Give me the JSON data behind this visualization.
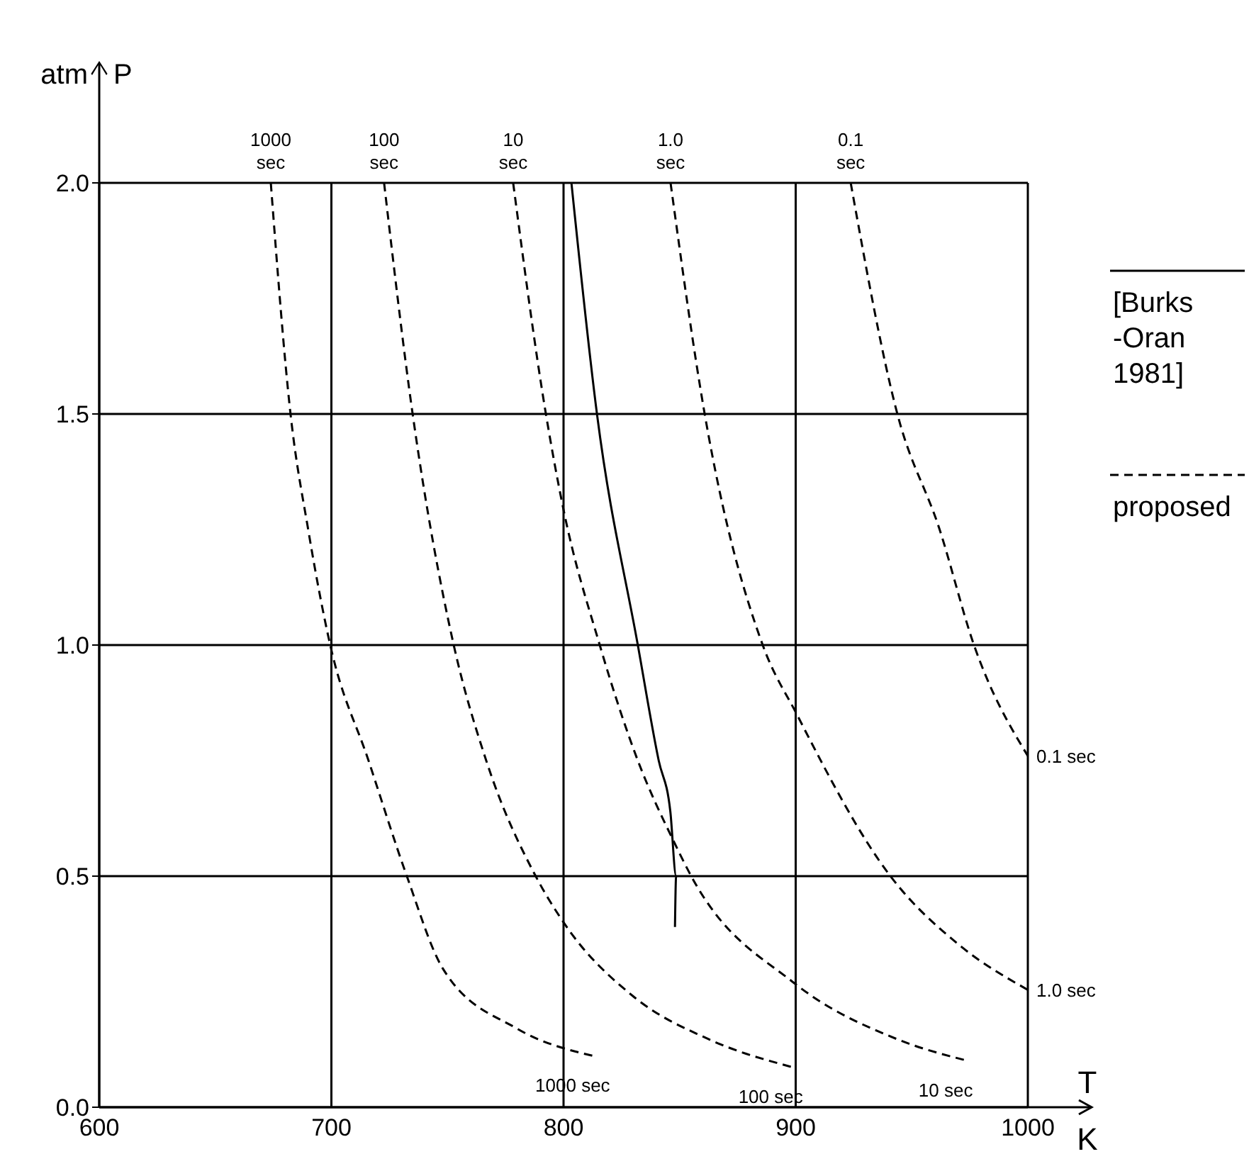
{
  "chart_data": {
    "type": "line",
    "xlabel": "T K",
    "ylabel": "atm P",
    "xlim": [
      600,
      1000
    ],
    "ylim": [
      0,
      2.0
    ],
    "xticks": [
      600,
      700,
      800,
      900,
      1000
    ],
    "yticks": [
      {
        "value": 0,
        "label": "0.0"
      },
      {
        "value": 0.5,
        "label": "0.5"
      },
      {
        "value": 1,
        "label": "1.0"
      },
      {
        "value": 1.5,
        "label": "1.5"
      },
      {
        "value": 2,
        "label": "2.0"
      }
    ],
    "grid": true,
    "legend": "right",
    "marker": "none",
    "series": [
      {
        "name": "[Burks -Oran 1981]",
        "color": "#000000",
        "line_style": "solid",
        "x": [
          803.4,
          814.4,
          832,
          841,
          846,
          848.5,
          848
        ],
        "values": [
          2.0,
          1.5,
          1.0,
          0.75,
          0.64,
          0.5,
          0.39
        ]
      },
      {
        "name": "proposed",
        "color": "#000000",
        "line_style": "dashed",
        "x": [
          673.9,
          682.4,
          690,
          699.5,
          716,
          732.5,
          748,
          780,
          813.7
        ],
        "values": [
          2.0,
          1.5,
          1.25,
          1.0,
          0.75,
          0.5,
          0.3,
          0.17,
          0.11
        ]
      },
      {
        "color": "#000000",
        "line_style": "dashed",
        "x": [
          722.7,
          735,
          752.7,
          766.7,
          788,
          800,
          830,
          862.6,
          899
        ],
        "values": [
          2.0,
          1.5,
          1.0,
          0.75,
          0.5,
          0.4,
          0.24,
          0.147,
          0.086
        ]
      },
      {
        "color": "#000000",
        "line_style": "dashed",
        "x": [
          778.3,
          792.4,
          799.7,
          815.6,
          832,
          847.3,
          855,
          899,
          943.8,
          974.4
        ],
        "values": [
          2.0,
          1.5,
          1.3,
          1.0,
          0.75,
          0.577,
          0.5,
          0.27,
          0.147,
          0.1
        ]
      },
      {
        "color": "#000000",
        "line_style": "dashed",
        "x": [
          846.1,
          860.8,
          885.8,
          900.5,
          940.8,
          970.7,
          1000
        ],
        "values": [
          2.0,
          1.5,
          1.0,
          0.85,
          0.5,
          0.35,
          0.254
        ]
      },
      {
        "color": "#000000",
        "line_style": "dashed",
        "x": [
          923.7,
          943.8,
          962,
          976.8,
          1000
        ],
        "values": [
          2.0,
          1.5,
          1.25,
          1.0,
          0.76
        ]
      }
    ],
    "annotations": [
      {
        "text": "1000 sec",
        "x": 673.9,
        "y": 2.0
      },
      {
        "text": "100 sec",
        "x": 722.7,
        "y": 2.0
      },
      {
        "text": "10 sec",
        "x": 778.3,
        "y": 2.0
      },
      {
        "text": "1.0 sec",
        "x": 846.1,
        "y": 2.0
      },
      {
        "text": "0.1 sec",
        "x": 923.7,
        "y": 2.0
      },
      {
        "text": "0.1 sec",
        "x": 1000,
        "y": 0.76
      },
      {
        "text": "1.0 sec",
        "x": 1000,
        "y": 0.254
      },
      {
        "text": "1000 sec",
        "x": 813.7,
        "y": 0.11
      },
      {
        "text": "100 sec",
        "x": 899,
        "y": 0.086
      },
      {
        "text": "10 sec",
        "x": 974.4,
        "y": 0.1
      }
    ]
  }
}
